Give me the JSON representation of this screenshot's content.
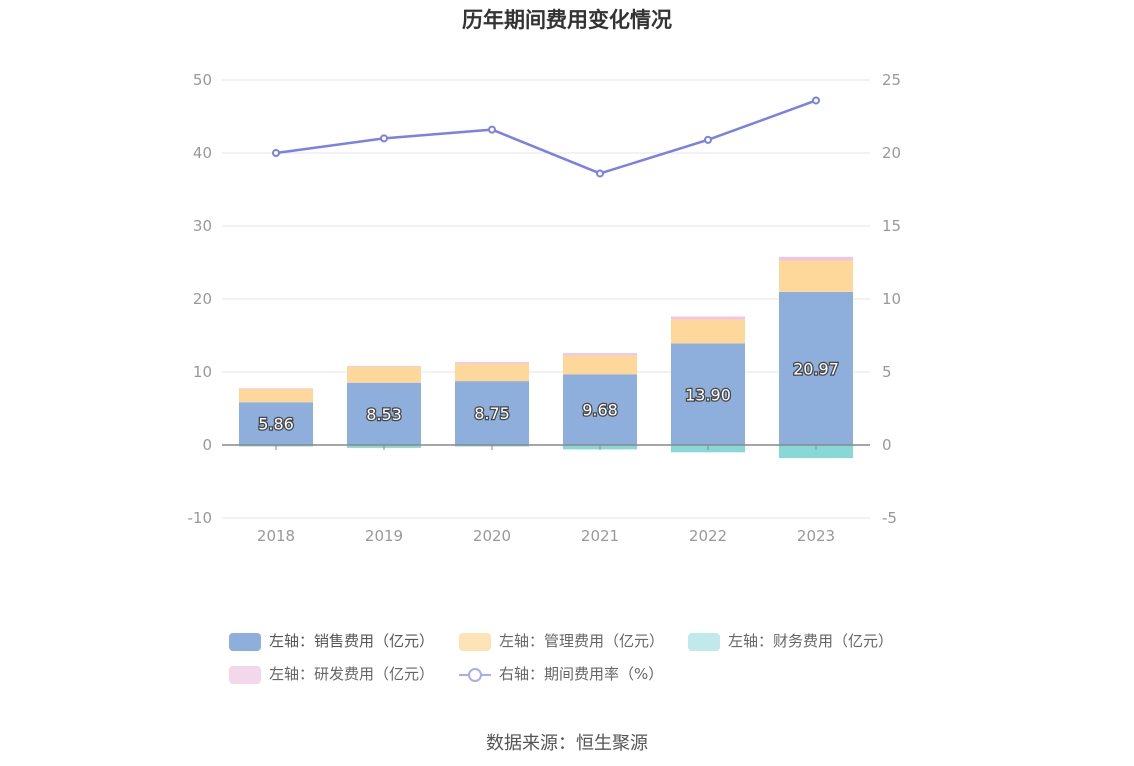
{
  "title": "历年期间费用变化情况",
  "source": "数据来源：恒生聚源",
  "legend": [
    {
      "label": "左轴：销售费用（亿元）",
      "color": "#8eaedb",
      "kind": "bar"
    },
    {
      "label": "左轴：管理费用（亿元）",
      "color": "#fde3b6",
      "kind": "bar"
    },
    {
      "label": "左轴：财务费用（亿元）",
      "color": "#bfe9ea",
      "kind": "bar"
    },
    {
      "label": "左轴：研发费用（亿元）",
      "color": "#f3d7ea",
      "kind": "bar"
    },
    {
      "label": "右轴：期间费用率（%）",
      "color": "#7b7fe8",
      "kind": "line"
    }
  ],
  "chart_data": {
    "type": "bar",
    "title": "历年期间费用变化情况",
    "categories": [
      "2018",
      "2019",
      "2020",
      "2021",
      "2022",
      "2023"
    ],
    "stacked": true,
    "left_axis": {
      "ylim": [
        -10,
        50
      ],
      "ticks": [
        -10,
        0,
        10,
        20,
        30,
        40,
        50
      ]
    },
    "right_axis": {
      "ylim": [
        -5,
        25
      ],
      "ticks": [
        -5,
        0,
        5,
        10,
        15,
        20,
        25
      ]
    },
    "grid": true,
    "legend_position": "bottom",
    "series": [
      {
        "name": "左轴：销售费用（亿元）",
        "axis": "left",
        "type": "bar",
        "color": "#8eaedb",
        "values": [
          5.86,
          8.53,
          8.75,
          9.68,
          13.9,
          20.97
        ],
        "labels": [
          "5.86",
          "8.53",
          "8.75",
          "9.68",
          "13.90",
          "20.97"
        ]
      },
      {
        "name": "左轴：管理费用（亿元）",
        "axis": "left",
        "type": "bar",
        "color": "#fdd89a",
        "values": [
          1.8,
          2.2,
          2.4,
          2.6,
          3.3,
          4.3
        ]
      },
      {
        "name": "左轴：财务费用（亿元）",
        "axis": "left",
        "type": "bar",
        "color": "#88d8d8",
        "values": [
          -0.2,
          -0.4,
          -0.2,
          -0.6,
          -1.0,
          -1.8
        ]
      },
      {
        "name": "左轴：研发费用（亿元）",
        "axis": "left",
        "type": "bar",
        "color": "#f0c4e2",
        "values": [
          0.1,
          0.1,
          0.2,
          0.3,
          0.4,
          0.5
        ]
      },
      {
        "name": "右轴：期间费用率（%）",
        "axis": "right",
        "type": "line",
        "color": "#7b7fe8",
        "values": [
          20.0,
          21.0,
          21.6,
          18.6,
          20.9,
          23.6
        ]
      }
    ]
  }
}
